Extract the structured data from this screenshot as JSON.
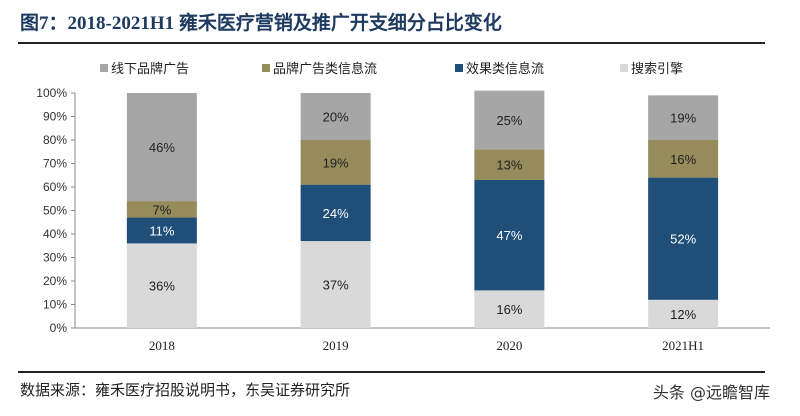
{
  "title": "图7：2018-2021H1 雍禾医疗营销及推广开支细分占比变化",
  "source": "数据来源：雍禾医疗招股说明书，东吴证券研究所",
  "watermark": "头条 @远瞻智库",
  "chart_data": {
    "type": "bar",
    "stacked": true,
    "categories": [
      "2018",
      "2019",
      "2020",
      "2021H1"
    ],
    "ylim": [
      0,
      100
    ],
    "yticks": [
      "0%",
      "10%",
      "20%",
      "30%",
      "40%",
      "50%",
      "60%",
      "70%",
      "80%",
      "90%",
      "100%"
    ],
    "legend_placement": "top",
    "series": [
      {
        "name": "搜索引擎",
        "color": "#d9d9d9",
        "values": [
          36,
          37,
          16,
          12
        ]
      },
      {
        "name": "效果类信息流",
        "color": "#1f4e79",
        "values": [
          11,
          24,
          47,
          52
        ]
      },
      {
        "name": "品牌广告类信息流",
        "color": "#968b5a",
        "values": [
          7,
          19,
          13,
          16
        ]
      },
      {
        "name": "线下品牌广告",
        "color": "#a6a6a6",
        "values": [
          46,
          20,
          25,
          19
        ]
      }
    ],
    "legend_order": [
      "线下品牌广告",
      "品牌广告类信息流",
      "效果类信息流",
      "搜索引擎"
    ]
  }
}
